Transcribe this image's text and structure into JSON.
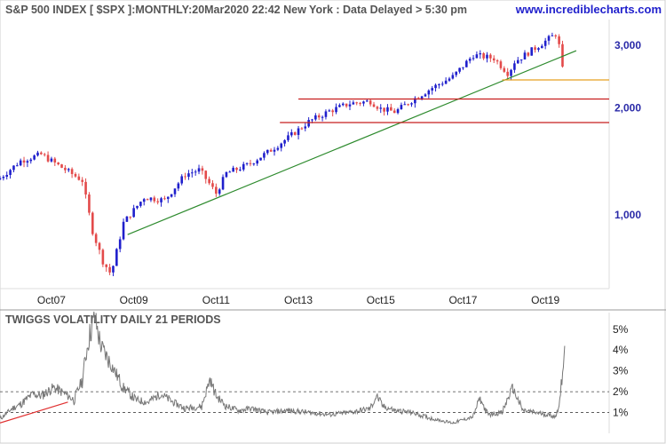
{
  "header": {
    "title": "S&P 500 INDEX [ $SPX ]:MONTHLY:20Mar2020 22:42 New York : Data Delayed > 5:30 pm",
    "site": "www.incrediblecharts.com"
  },
  "colors": {
    "up_candle": "#1f1fcc",
    "down_candle": "#e34a4a",
    "trendline": "#2e8b2e",
    "support": "#c81e1e",
    "orange_line": "#e8a020",
    "volatility": "#777777",
    "volatility_trend": "#e03030",
    "axis_text": "#2a2aa8"
  },
  "chart_data": [
    {
      "type": "candlestick",
      "title": "S&P 500 INDEX [ $SPX ]:MONTHLY:20Mar2020 22:42 New York : Data Delayed > 5:30 pm",
      "scale": "log",
      "x_tick_labels": [
        "Oct07",
        "Oct09",
        "Oct11",
        "Oct13",
        "Oct15",
        "Oct17",
        "Oct19"
      ],
      "y_tick_labels": [
        "1,000",
        "2,000",
        "3,000"
      ],
      "ylim": [
        620,
        3550
      ],
      "series": [
        {
          "name": "price",
          "x": [
            2006.5,
            2007.0,
            2007.5,
            2008.0,
            2008.5,
            2008.75,
            2009.0,
            2009.2,
            2009.5,
            2010.0,
            2010.5,
            2011.0,
            2011.35,
            2011.75,
            2012.0,
            2012.5,
            2013.0,
            2013.5,
            2014.0,
            2014.5,
            2015.0,
            2015.5,
            2015.75,
            2016.1,
            2016.5,
            2017.0,
            2017.5,
            2018.0,
            2018.5,
            2018.85,
            2019.0,
            2019.5,
            2020.0,
            2020.1,
            2020.22
          ],
          "y": [
            1270,
            1420,
            1480,
            1360,
            1250,
            900,
            740,
            680,
            950,
            1120,
            1100,
            1300,
            1340,
            1150,
            1310,
            1380,
            1500,
            1650,
            1830,
            1960,
            2060,
            2090,
            1990,
            1950,
            2100,
            2280,
            2450,
            2820,
            2760,
            2500,
            2700,
            2950,
            3230,
            2950,
            2300
          ]
        }
      ],
      "annotations": [
        {
          "type": "trendline",
          "from": [
            2009.6,
            880
          ],
          "to": [
            2020.5,
            2900
          ]
        },
        {
          "type": "horizontal",
          "value": 2120,
          "from": 2013.75
        },
        {
          "type": "horizontal",
          "value": 1820,
          "from": 2013.3
        },
        {
          "type": "horizontal",
          "value": 2400,
          "from": 2018.7
        }
      ]
    },
    {
      "type": "line",
      "title": "TWIGGS VOLATILITY DAILY 21 PERIODS",
      "x_tick_labels": [],
      "y_tick_labels": [
        "1%",
        "2%",
        "3%",
        "4%",
        "5%"
      ],
      "ylim": [
        0.0,
        5.8
      ],
      "reference_lines": [
        1.0,
        2.0
      ],
      "series": [
        {
          "name": "volatility",
          "x": [
            2006.5,
            2006.8,
            2007.0,
            2007.3,
            2007.5,
            2007.8,
            2008.0,
            2008.3,
            2008.5,
            2008.65,
            2008.8,
            2008.95,
            2009.2,
            2009.5,
            2009.8,
            2010.1,
            2010.4,
            2010.7,
            2011.0,
            2011.4,
            2011.6,
            2011.75,
            2012.0,
            2012.3,
            2012.6,
            2013.0,
            2013.5,
            2014.0,
            2014.5,
            2015.0,
            2015.5,
            2015.65,
            2015.8,
            2016.1,
            2016.5,
            2017.0,
            2017.5,
            2018.0,
            2018.15,
            2018.35,
            2018.7,
            2018.95,
            2019.2,
            2019.5,
            2019.8,
            2020.0,
            2020.1,
            2020.22
          ],
          "y": [
            0.7,
            1.2,
            1.4,
            1.9,
            1.8,
            2.2,
            2.0,
            1.6,
            2.6,
            4.5,
            5.6,
            4.2,
            3.3,
            2.2,
            1.6,
            1.5,
            1.9,
            1.5,
            1.2,
            1.3,
            2.6,
            1.8,
            1.3,
            1.1,
            1.2,
            1.0,
            1.1,
            1.0,
            0.9,
            1.0,
            1.2,
            1.8,
            1.3,
            1.1,
            1.0,
            0.7,
            0.5,
            0.8,
            1.7,
            0.9,
            1.0,
            2.2,
            1.1,
            1.0,
            0.9,
            0.8,
            1.5,
            4.2
          ]
        },
        {
          "name": "volatility-trend",
          "x": [
            2006.5,
            2008.15
          ],
          "y": [
            0.5,
            1.5
          ]
        }
      ]
    }
  ]
}
